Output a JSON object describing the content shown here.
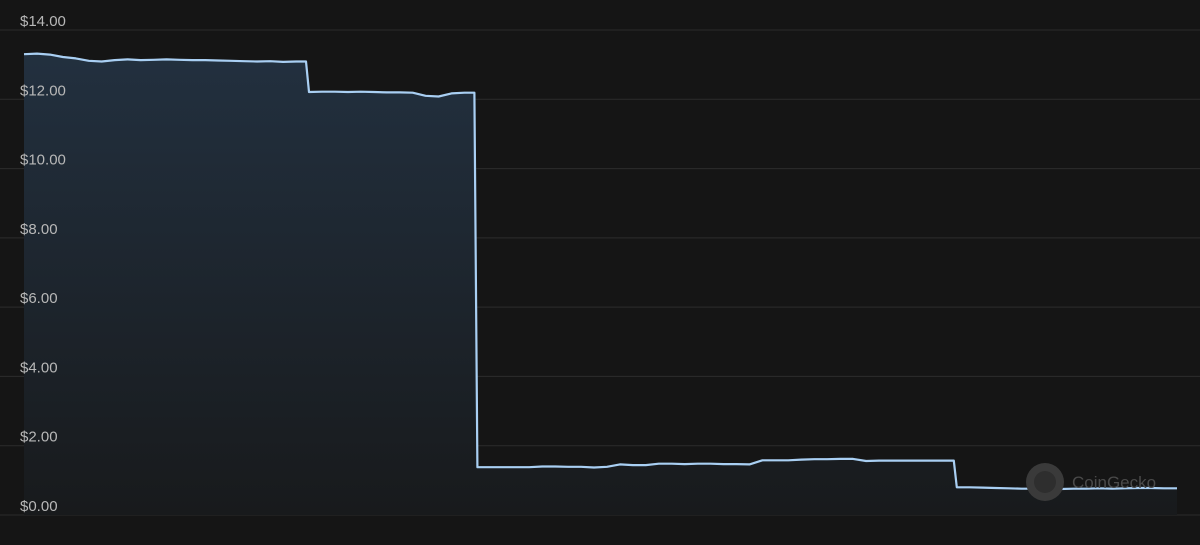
{
  "chart_data": {
    "type": "area",
    "ylim": [
      0,
      14
    ],
    "y_ticks": [
      {
        "value": 14,
        "label": "$14.00"
      },
      {
        "value": 12,
        "label": "$12.00"
      },
      {
        "value": 10,
        "label": "$10.00"
      },
      {
        "value": 8,
        "label": "$8.00"
      },
      {
        "value": 6,
        "label": "$6.00"
      },
      {
        "value": 4,
        "label": "$4.00"
      },
      {
        "value": 2,
        "label": "$2.00"
      },
      {
        "value": 0,
        "label": "$0.00"
      }
    ],
    "grid": true,
    "series": [
      {
        "values": [
          13.3,
          13.32,
          13.29,
          13.22,
          13.18,
          13.11,
          13.09,
          13.13,
          13.15,
          13.13,
          13.14,
          13.15,
          13.14,
          13.13,
          13.13,
          13.12,
          13.11,
          13.1,
          13.09,
          13.1,
          13.08,
          13.09,
          12.21,
          12.22,
          12.22,
          12.21,
          12.22,
          12.21,
          12.2,
          12.2,
          12.19,
          12.1,
          12.08,
          12.17,
          12.19,
          1.38,
          1.38,
          1.38,
          1.38,
          1.38,
          1.4,
          1.4,
          1.39,
          1.39,
          1.37,
          1.39,
          1.46,
          1.44,
          1.44,
          1.48,
          1.48,
          1.47,
          1.48,
          1.48,
          1.47,
          1.47,
          1.46,
          1.58,
          1.58,
          1.58,
          1.6,
          1.61,
          1.61,
          1.62,
          1.62,
          1.56,
          1.57,
          1.57,
          1.57,
          1.57,
          1.57,
          1.57,
          0.8,
          0.8,
          0.79,
          0.78,
          0.77,
          0.76,
          0.76,
          0.75,
          0.75,
          0.76,
          0.76,
          0.77,
          0.76,
          0.77,
          0.78,
          0.78,
          0.77,
          0.77
        ]
      }
    ]
  },
  "colors": {
    "line": "#a9cff3",
    "area_top": "#22303f",
    "area_bottom": "#181a1c",
    "grid": "#2c2c2c",
    "tick_text": "#b8b8b8"
  },
  "watermark": {
    "text": "CoinGecko",
    "icon": "coingecko-logo-icon"
  }
}
